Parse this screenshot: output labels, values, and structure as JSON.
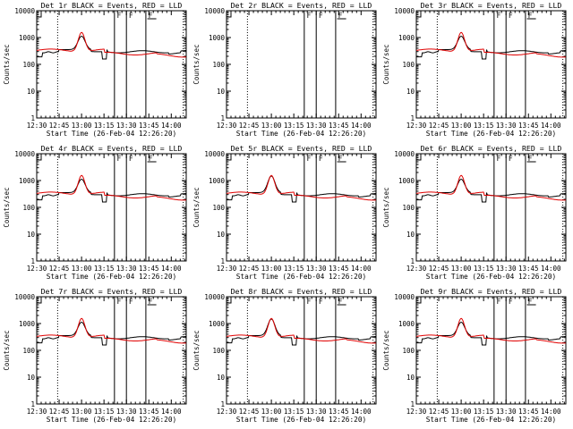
{
  "colors": {
    "background": "#ffffff",
    "axis": "#000000",
    "series_events": "#000000",
    "series_lld": "#e00000"
  },
  "chart_data": [
    {
      "type": "line",
      "title": "Det 1r BLACK = Events, RED = LLD",
      "xlabel": "Start Time (26-Feb-04 12:26:20)",
      "ylabel": "Counts/sec",
      "x": [
        "12:30",
        "12:45",
        "13:00",
        "13:15",
        "13:30",
        "13:45",
        "14:00"
      ],
      "ylim": [
        1,
        10000
      ],
      "y_scale": "log",
      "y_ticks": [
        "1",
        "10",
        "100",
        "1000",
        "10000"
      ],
      "grid": false,
      "attenuator_flags": [
        "F",
        "F",
        "F"
      ],
      "variant": "A",
      "series": [
        {
          "color": "black"
        },
        {
          "color": "red"
        }
      ]
    },
    {
      "type": "line",
      "title": "Det 2r BLACK = Events, RED = LLD",
      "xlabel": "Start Time (26-Feb-04 12:26:20)",
      "ylabel": "Counts/sec",
      "x": [
        "12:30",
        "12:45",
        "13:00",
        "13:15",
        "13:30",
        "13:45",
        "14:00"
      ],
      "ylim": [
        1,
        10000
      ],
      "y_scale": "log",
      "y_ticks": [
        "1",
        "10",
        "100",
        "1000",
        "10000"
      ],
      "grid": false,
      "attenuator_flags": [
        "F",
        "F",
        "F"
      ],
      "variant": "empty",
      "series": []
    },
    {
      "type": "line",
      "title": "Det 3r BLACK = Events, RED = LLD",
      "xlabel": "Start Time (26-Feb-04 12:26:20)",
      "ylabel": "Counts/sec",
      "x": [
        "12:30",
        "12:45",
        "13:00",
        "13:15",
        "13:30",
        "13:45",
        "14:00"
      ],
      "ylim": [
        1,
        10000
      ],
      "y_scale": "log",
      "y_ticks": [
        "1",
        "10",
        "100",
        "1000",
        "10000"
      ],
      "grid": false,
      "attenuator_flags": [
        "F",
        "F",
        "F"
      ],
      "variant": "A",
      "series": [
        {
          "color": "black"
        },
        {
          "color": "red"
        }
      ]
    },
    {
      "type": "line",
      "title": "Det 4r BLACK = Events, RED = LLD",
      "xlabel": "Start Time (26-Feb-04 12:26:20)",
      "ylabel": "Counts/sec",
      "x": [
        "12:30",
        "12:45",
        "13:00",
        "13:15",
        "13:30",
        "13:45",
        "14:00"
      ],
      "ylim": [
        1,
        10000
      ],
      "y_scale": "log",
      "y_ticks": [
        "1",
        "10",
        "100",
        "1000",
        "10000"
      ],
      "grid": false,
      "attenuator_flags": [
        "F",
        "F",
        "F"
      ],
      "variant": "A",
      "series": [
        {
          "color": "black"
        },
        {
          "color": "red"
        }
      ]
    },
    {
      "type": "line",
      "title": "Det 5r BLACK = Events, RED = LLD",
      "xlabel": "Start Time (26-Feb-04 12:26:20)",
      "ylabel": "Counts/sec",
      "x": [
        "12:30",
        "12:45",
        "13:00",
        "13:15",
        "13:30",
        "13:45",
        "14:00"
      ],
      "ylim": [
        1,
        10000
      ],
      "y_scale": "log",
      "y_ticks": [
        "1",
        "10",
        "100",
        "1000",
        "10000"
      ],
      "grid": false,
      "attenuator_flags": [
        "F",
        "F",
        "F"
      ],
      "variant": "B",
      "series": [
        {
          "color": "black"
        },
        {
          "color": "red"
        }
      ]
    },
    {
      "type": "line",
      "title": "Det 6r BLACK = Events, RED = LLD",
      "xlabel": "Start Time (26-Feb-04 12:26:20)",
      "ylabel": "Counts/sec",
      "x": [
        "12:30",
        "12:45",
        "13:00",
        "13:15",
        "13:30",
        "13:45",
        "14:00"
      ],
      "ylim": [
        1,
        10000
      ],
      "y_scale": "log",
      "y_ticks": [
        "1",
        "10",
        "100",
        "1000",
        "10000"
      ],
      "grid": false,
      "attenuator_flags": [
        "F",
        "F",
        "F"
      ],
      "variant": "A",
      "series": [
        {
          "color": "black"
        },
        {
          "color": "red"
        }
      ]
    },
    {
      "type": "line",
      "title": "Det 7r BLACK = Events, RED = LLD",
      "xlabel": "Start Time (26-Feb-04 12:26:20)",
      "ylabel": "Counts/sec",
      "x": [
        "12:30",
        "12:45",
        "13:00",
        "13:15",
        "13:30",
        "13:45",
        "14:00"
      ],
      "ylim": [
        1,
        10000
      ],
      "y_scale": "log",
      "y_ticks": [
        "1",
        "10",
        "100",
        "1000",
        "10000"
      ],
      "grid": false,
      "attenuator_flags": [
        "F",
        "F",
        "F"
      ],
      "variant": "A",
      "series": [
        {
          "color": "black"
        },
        {
          "color": "red"
        }
      ]
    },
    {
      "type": "line",
      "title": "Det 8r BLACK = Events, RED = LLD",
      "xlabel": "Start Time (26-Feb-04 12:26:20)",
      "ylabel": "Counts/sec",
      "x": [
        "12:30",
        "12:45",
        "13:00",
        "13:15",
        "13:30",
        "13:45",
        "14:00"
      ],
      "ylim": [
        1,
        10000
      ],
      "y_scale": "log",
      "y_ticks": [
        "1",
        "10",
        "100",
        "1000",
        "10000"
      ],
      "grid": false,
      "attenuator_flags": [
        "F",
        "F",
        "F"
      ],
      "variant": "B",
      "series": [
        {
          "color": "black"
        },
        {
          "color": "red"
        }
      ]
    },
    {
      "type": "line",
      "title": "Det 9r BLACK = Events, RED = LLD",
      "xlabel": "Start Time (26-Feb-04 12:26:20)",
      "ylabel": "Counts/sec",
      "x": [
        "12:30",
        "12:45",
        "13:00",
        "13:15",
        "13:30",
        "13:45",
        "14:00"
      ],
      "ylim": [
        1,
        10000
      ],
      "y_scale": "log",
      "y_ticks": [
        "1",
        "10",
        "100",
        "1000",
        "10000"
      ],
      "grid": false,
      "attenuator_flags": [
        "F",
        "F",
        "F"
      ],
      "variant": "A",
      "series": [
        {
          "color": "black"
        },
        {
          "color": "red"
        }
      ]
    }
  ]
}
